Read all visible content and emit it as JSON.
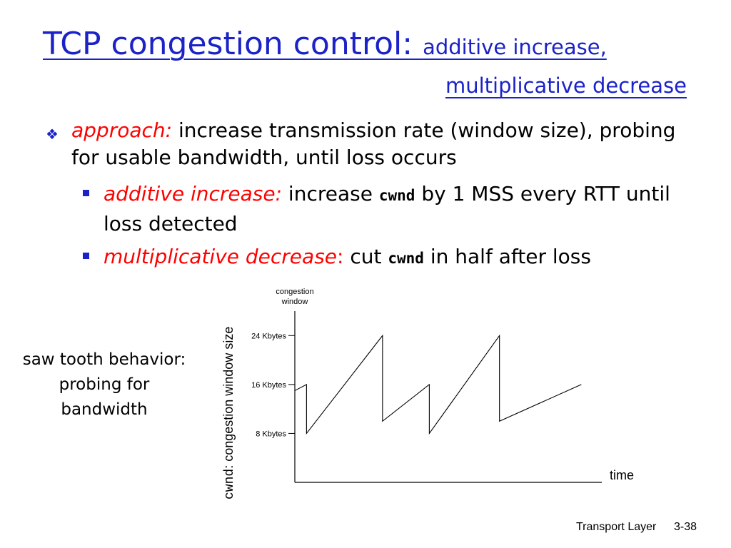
{
  "slide": {
    "title_main": "TCP congestion control:",
    "title_sub_1": "additive increase,",
    "title_sub_2": "multiplicative decrease",
    "bullet1": {
      "label": "approach:",
      "text": " increase transmission rate (window size), probing for usable bandwidth, until loss occurs"
    },
    "sub_bullets": [
      {
        "label": "additive increase:",
        "before": " increase ",
        "code": "cwnd",
        "after": " by 1 MSS every RTT until loss detected"
      },
      {
        "label": "multiplicative decrease",
        "colon": ":",
        "before": " cut ",
        "code": "cwnd",
        "after": " in half after loss"
      }
    ],
    "saw_note": "saw tooth behavior: probing for bandwidth",
    "footer_left": "Transport Layer",
    "footer_right": "3-38"
  },
  "chart_data": {
    "type": "line",
    "y_axis_title_code": "cwnd",
    "y_axis_title_rest": ": congestion window size",
    "y_axis_top_label_1": "congestion",
    "y_axis_top_label_2": "window",
    "x_axis_label": "time",
    "y_ticks": [
      {
        "label": "24 Kbytes",
        "value": 24
      },
      {
        "label": "16 Kbytes",
        "value": 16
      },
      {
        "label": "8 Kbytes",
        "value": 8
      }
    ],
    "ylim": [
      0,
      28
    ],
    "series": [
      {
        "points": [
          [
            0,
            15
          ],
          [
            4,
            16
          ],
          [
            4,
            8
          ],
          [
            30,
            24
          ],
          [
            30,
            10
          ],
          [
            46,
            16
          ],
          [
            46,
            8
          ],
          [
            70,
            24
          ],
          [
            70,
            10
          ],
          [
            98,
            16
          ]
        ]
      }
    ],
    "xlim": [
      0,
      105
    ],
    "colors": {
      "line": "#000000",
      "title": "#1a22c8",
      "accent": "#ff0000"
    }
  }
}
